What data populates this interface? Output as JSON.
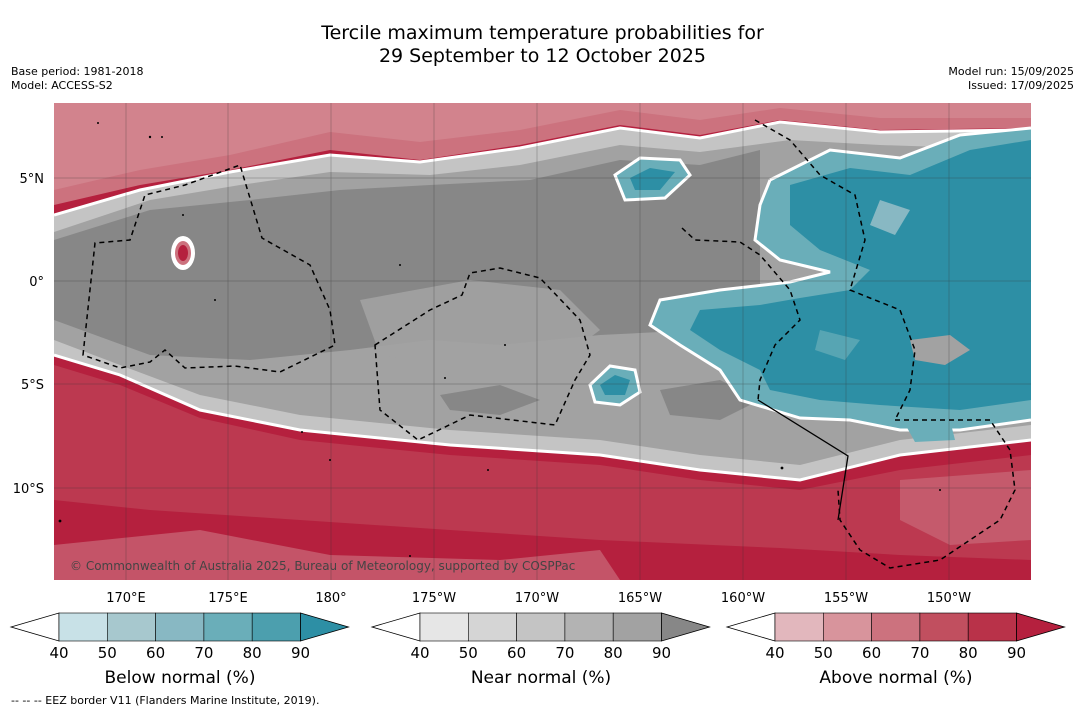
{
  "header": {
    "title_line1": "Tercile maximum temperature probabilities for",
    "title_line2": "29 September to 12 October 2025",
    "base_period": "Base period: 1981-2018",
    "model": "Model: ACCESS-S2",
    "model_run": "Model run: 15/09/2025",
    "issued": "Issued: 17/09/2025"
  },
  "map": {
    "lat_labels": [
      "5°N",
      "0°",
      "5°S",
      "10°S"
    ],
    "lon_labels": [
      "170°E",
      "175°E",
      "180°",
      "175°W",
      "170°W",
      "165°W",
      "160°W",
      "155°W",
      "150°W"
    ],
    "credit": "© Commonwealth of Australia 2025, Bureau of Meteorology, supported by COSPPac",
    "colors": {
      "above_dark": "#b5203e",
      "near_dark": "#878787",
      "below_dark": "#2d8fa5",
      "land": "#000000"
    }
  },
  "legend": {
    "below": {
      "label": "Below normal (%)",
      "ticks": [
        "40",
        "50",
        "60",
        "70",
        "80",
        "90"
      ],
      "colors": [
        "#ffffff",
        "#c8e1e7",
        "#a7c8ce",
        "#88b8c3",
        "#6aaeb9",
        "#4c9fae",
        "#2d8fa5"
      ]
    },
    "near": {
      "label": "Near normal (%)",
      "ticks": [
        "40",
        "50",
        "60",
        "70",
        "80",
        "90"
      ],
      "colors": [
        "#ffffff",
        "#e6e6e6",
        "#d5d5d5",
        "#c4c4c4",
        "#b3b3b3",
        "#a2a2a2",
        "#878787"
      ]
    },
    "above": {
      "label": "Above normal (%)",
      "ticks": [
        "40",
        "50",
        "60",
        "70",
        "80",
        "90"
      ],
      "colors": [
        "#ffffff",
        "#e2b7bd",
        "#d8949c",
        "#cc727e",
        "#c14f5f",
        "#b93249",
        "#b5203e"
      ]
    }
  },
  "footer": {
    "eez_note": "--  --  -- EEZ border V11 (Flanders Marine Institute, 2019)."
  }
}
